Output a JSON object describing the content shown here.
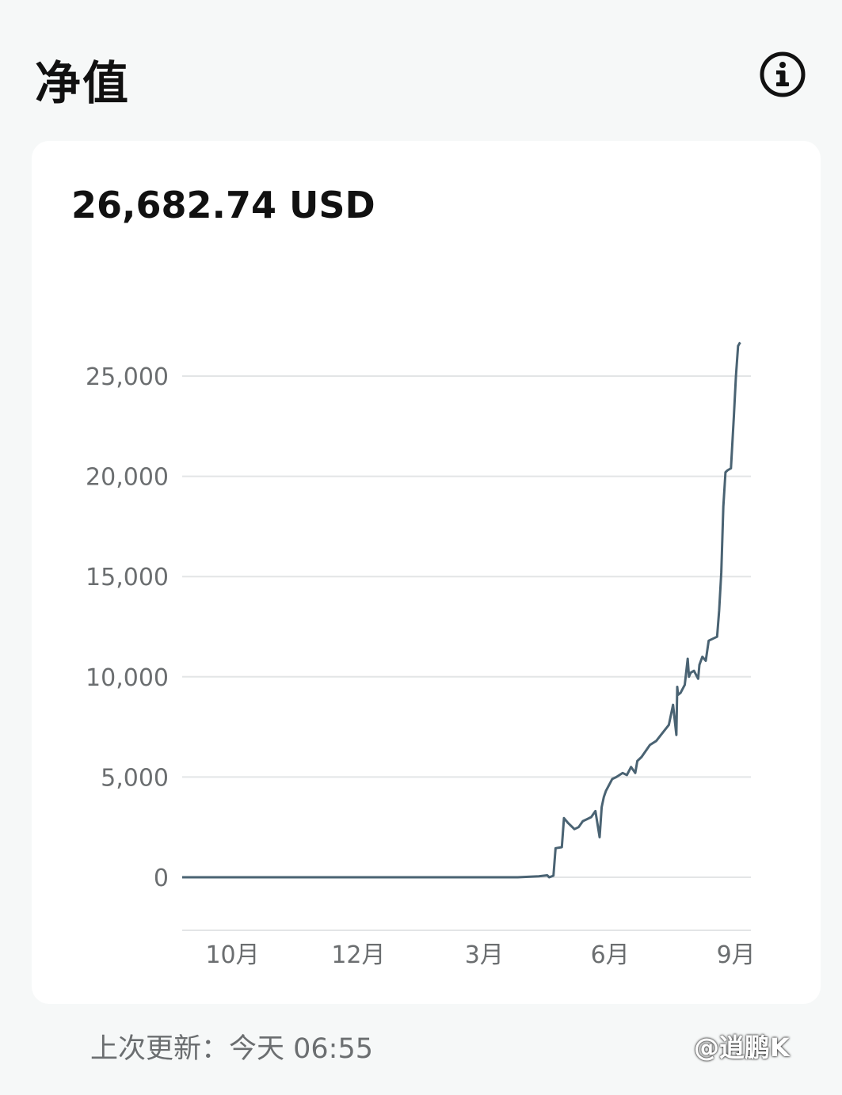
{
  "header": {
    "title": "净值"
  },
  "card": {
    "net_value": "26,682.74 USD"
  },
  "chart_data": {
    "type": "line",
    "title": "",
    "xlabel": "",
    "ylabel": "",
    "ylim": [
      -2600,
      27000
    ],
    "yticks": [
      0,
      5000,
      10000,
      15000,
      20000,
      25000
    ],
    "ytick_labels": [
      "0",
      "5,000",
      "10,000",
      "15,000",
      "20,000",
      "25,000"
    ],
    "xtick_labels": [
      "10月",
      "12月",
      "3月",
      "6月",
      "9月"
    ],
    "xtick_positions": [
      1.2,
      4.2,
      7.2,
      10.2,
      13.2
    ],
    "xlim": [
      0,
      13.5
    ],
    "grid": true,
    "line_color": "#4a6373",
    "series": [
      {
        "x": [
          0,
          7.6,
          8.0,
          8.5,
          8.7,
          8.75,
          8.85,
          8.9,
          9.05,
          9.1,
          9.2,
          9.35,
          9.45,
          9.55,
          9.65,
          9.75,
          9.85,
          9.95,
          10.0,
          10.05,
          10.1,
          10.25,
          10.35,
          10.5,
          10.6,
          10.7,
          10.8,
          10.85,
          10.95,
          11.05,
          11.15,
          11.3,
          11.45,
          11.6,
          11.7,
          11.78,
          11.8,
          11.82,
          11.88,
          11.98,
          12.05,
          12.08,
          12.12,
          12.2,
          12.3,
          12.33,
          12.4,
          12.48,
          12.55,
          12.65,
          12.75,
          12.8,
          12.85,
          12.9,
          12.95,
          13.0,
          13.08,
          13.15,
          13.2,
          13.25,
          13.3
        ],
        "y": [
          0,
          0,
          0,
          50,
          100,
          0,
          80,
          1450,
          1500,
          2950,
          2700,
          2400,
          2500,
          2800,
          2900,
          3000,
          3300,
          2000,
          3500,
          4000,
          4300,
          4900,
          5000,
          5200,
          5100,
          5500,
          5200,
          5800,
          6000,
          6300,
          6600,
          6800,
          7200,
          7600,
          8600,
          7100,
          9500,
          9100,
          9200,
          9600,
          10900,
          10000,
          10200,
          10300,
          9900,
          10600,
          11000,
          10800,
          11800,
          11900,
          12000,
          13300,
          15200,
          18500,
          20200,
          20300,
          20400,
          23000,
          25000,
          26500,
          26682.74
        ]
      }
    ]
  },
  "footer": {
    "last_updated": "上次更新：今天 06:55",
    "watermark": "@逍鹏K"
  },
  "icons": {
    "info": "info-circle-icon"
  }
}
